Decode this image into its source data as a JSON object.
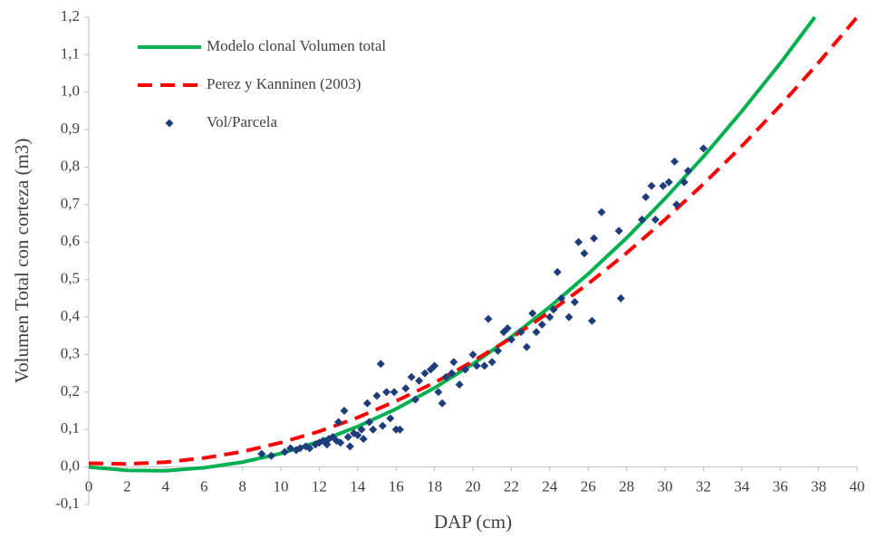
{
  "chart_data": {
    "type": "line",
    "xlabel": "DAP (cm)",
    "ylabel": "Volumen Total con corteza (m3)",
    "xlim": [
      0,
      40
    ],
    "xticks": [
      0,
      2,
      4,
      6,
      8,
      10,
      12,
      14,
      16,
      18,
      20,
      22,
      24,
      26,
      28,
      30,
      32,
      34,
      36,
      38,
      40
    ],
    "ylim": [
      -0.1,
      1.2
    ],
    "yticks": [
      {
        "value": -0.1,
        "label": "-0,1"
      },
      {
        "value": 0,
        "label": "0,0"
      },
      {
        "value": 0.1,
        "label": "0,1"
      },
      {
        "value": 0.2,
        "label": "0,2"
      },
      {
        "value": 0.3,
        "label": "0,3"
      },
      {
        "value": 0.4,
        "label": "0,4"
      },
      {
        "value": 0.5,
        "label": "0,5"
      },
      {
        "value": 0.6,
        "label": "0,6"
      },
      {
        "value": 0.7,
        "label": "0,7"
      },
      {
        "value": 0.8,
        "label": "0,8"
      },
      {
        "value": 0.9,
        "label": "0,9"
      },
      {
        "value": 1.0,
        "label": "1,0"
      },
      {
        "value": 1.1,
        "label": "1,1"
      },
      {
        "value": 1.2,
        "label": "1,2"
      }
    ],
    "grid": false,
    "legend": "upper-left",
    "series": [
      {
        "name": "Modelo clonal Volumen total",
        "type": "line",
        "color": "#00b050",
        "dashed": false,
        "x": [
          0,
          2,
          4,
          6,
          8,
          10,
          12,
          14,
          16,
          18,
          20,
          22,
          24,
          26,
          28,
          30,
          32,
          34,
          36,
          37.8
        ],
        "values": [
          0,
          -0.009,
          -0.01,
          -0.002,
          0.013,
          0.036,
          0.068,
          0.108,
          0.155,
          0.211,
          0.275,
          0.347,
          0.427,
          0.515,
          0.611,
          0.716,
          0.828,
          0.949,
          1.077,
          1.2
        ]
      },
      {
        "name": "Perez y Kanninen (2003)",
        "type": "line",
        "color": "#ff0000",
        "dashed": true,
        "x": [
          0,
          2,
          4,
          6,
          8,
          10,
          12,
          14,
          16,
          18,
          20,
          22,
          24,
          26,
          28,
          30,
          32,
          34,
          36,
          38,
          40
        ],
        "values": [
          0.01,
          0.008,
          0.013,
          0.024,
          0.041,
          0.065,
          0.095,
          0.132,
          0.176,
          0.225,
          0.282,
          0.344,
          0.414,
          0.489,
          0.571,
          0.66,
          0.755,
          0.856,
          0.964,
          1.079,
          1.2
        ]
      },
      {
        "name": "Vol/Parcela",
        "type": "scatter",
        "color": "#1f3d7a",
        "x": [
          9,
          9.5,
          10.2,
          10.5,
          10.8,
          11,
          11.3,
          11.5,
          11.8,
          12,
          12.2,
          12.4,
          12.5,
          12.7,
          12.9,
          13,
          13.1,
          13.3,
          13.5,
          13.6,
          13.8,
          14,
          14.2,
          14.3,
          14.5,
          14.6,
          14.8,
          15,
          15.2,
          15.3,
          15.5,
          15.7,
          15.9,
          16,
          16.2,
          16.5,
          16.8,
          17,
          17.2,
          17.5,
          17.8,
          18,
          18.2,
          18.4,
          18.6,
          18.9,
          19,
          19.3,
          19.6,
          20,
          20.2,
          20.6,
          20.8,
          21,
          21.3,
          21.6,
          21.8,
          22,
          22.5,
          22.8,
          23.1,
          23.3,
          23.6,
          24,
          24.2,
          24.4,
          24.6,
          25,
          25.3,
          25.5,
          25.8,
          26.2,
          26.3,
          26.7,
          27.6,
          27.7,
          28.8,
          29,
          29.3,
          29.5,
          29.9,
          30.2,
          30.5,
          30.6,
          31,
          31.2,
          32
        ],
        "values": [
          0.035,
          0.03,
          0.04,
          0.05,
          0.045,
          0.05,
          0.055,
          0.05,
          0.06,
          0.065,
          0.07,
          0.06,
          0.075,
          0.08,
          0.07,
          0.12,
          0.065,
          0.15,
          0.08,
          0.055,
          0.09,
          0.085,
          0.1,
          0.075,
          0.17,
          0.12,
          0.1,
          0.19,
          0.275,
          0.11,
          0.2,
          0.13,
          0.2,
          0.1,
          0.1,
          0.21,
          0.24,
          0.18,
          0.23,
          0.25,
          0.26,
          0.27,
          0.2,
          0.17,
          0.24,
          0.25,
          0.28,
          0.22,
          0.26,
          0.3,
          0.27,
          0.27,
          0.395,
          0.28,
          0.31,
          0.36,
          0.37,
          0.34,
          0.36,
          0.32,
          0.41,
          0.36,
          0.38,
          0.4,
          0.42,
          0.52,
          0.45,
          0.4,
          0.44,
          0.6,
          0.57,
          0.39,
          0.61,
          0.68,
          0.63,
          0.45,
          0.66,
          0.72,
          0.75,
          0.66,
          0.75,
          0.76,
          0.815,
          0.7,
          0.76,
          0.79,
          0.85
        ]
      }
    ]
  }
}
